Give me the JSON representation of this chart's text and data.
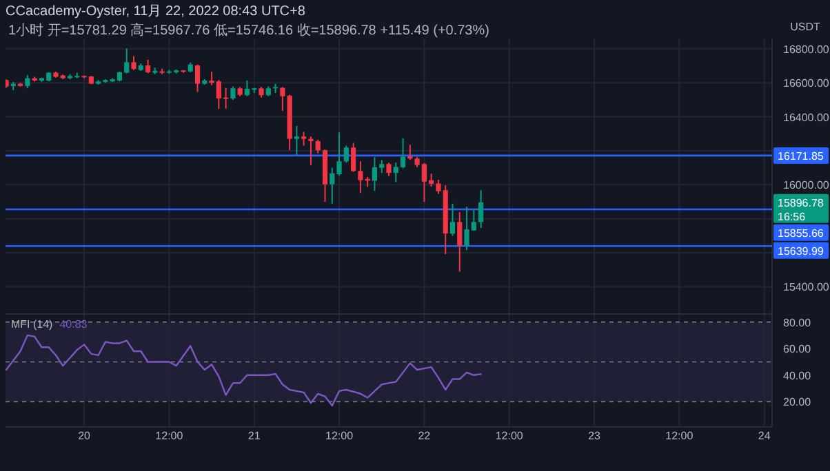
{
  "chart_data": [
    {
      "type": "candlestick",
      "title": "CCacademy-Oyster, 11月 22, 2022 08:43 UTC+8",
      "subtitle": "1小时 开=15781.29 高=15967.76 低=15746.16 收=15896.78 +115.49 (+0.73%)",
      "ylabel": "USDT",
      "x": [
        "2022-11-19T13:00",
        "2022-11-19T14:00",
        "2022-11-19T15:00",
        "2022-11-19T16:00",
        "2022-11-19T17:00",
        "2022-11-19T18:00",
        "2022-11-19T19:00",
        "2022-11-19T20:00",
        "2022-11-19T21:00",
        "2022-11-19T22:00",
        "2022-11-19T23:00",
        "2022-11-20T00:00",
        "2022-11-20T01:00",
        "2022-11-20T02:00",
        "2022-11-20T03:00",
        "2022-11-20T04:00",
        "2022-11-20T05:00",
        "2022-11-20T06:00",
        "2022-11-20T07:00",
        "2022-11-20T08:00",
        "2022-11-20T09:00",
        "2022-11-20T10:00",
        "2022-11-20T11:00",
        "2022-11-20T12:00",
        "2022-11-20T13:00",
        "2022-11-20T14:00",
        "2022-11-20T15:00",
        "2022-11-20T16:00",
        "2022-11-20T17:00",
        "2022-11-20T18:00",
        "2022-11-20T19:00",
        "2022-11-20T20:00",
        "2022-11-20T21:00",
        "2022-11-20T22:00",
        "2022-11-20T23:00",
        "2022-11-21T00:00",
        "2022-11-21T01:00",
        "2022-11-21T02:00",
        "2022-11-21T03:00",
        "2022-11-21T04:00",
        "2022-11-21T05:00",
        "2022-11-21T06:00",
        "2022-11-21T07:00",
        "2022-11-21T08:00",
        "2022-11-21T09:00",
        "2022-11-21T10:00",
        "2022-11-21T11:00",
        "2022-11-21T12:00",
        "2022-11-21T13:00",
        "2022-11-21T14:00",
        "2022-11-21T15:00",
        "2022-11-21T16:00",
        "2022-11-21T17:00",
        "2022-11-21T18:00",
        "2022-11-21T19:00",
        "2022-11-21T20:00",
        "2022-11-21T21:00",
        "2022-11-21T22:00",
        "2022-11-21T23:00",
        "2022-11-22T00:00",
        "2022-11-22T01:00",
        "2022-11-22T02:00",
        "2022-11-22T03:00",
        "2022-11-22T04:00",
        "2022-11-22T05:00",
        "2022-11-22T06:00",
        "2022-11-22T07:00",
        "2022-11-22T08:00"
      ],
      "ohlc": [
        [
          16616,
          16620,
          16570,
          16578
        ],
        [
          16581,
          16605,
          16556,
          16594
        ],
        [
          16594,
          16600,
          16578,
          16581
        ],
        [
          16581,
          16646,
          16567,
          16627
        ],
        [
          16627,
          16635,
          16608,
          16613
        ],
        [
          16613,
          16630,
          16605,
          16627
        ],
        [
          16613,
          16662,
          16608,
          16659
        ],
        [
          16659,
          16665,
          16630,
          16635
        ],
        [
          16643,
          16648,
          16621,
          16627
        ],
        [
          16627,
          16651,
          16621,
          16640
        ],
        [
          16632,
          16659,
          16627,
          16640
        ],
        [
          16640,
          16643,
          16627,
          16632
        ],
        [
          16637,
          16640,
          16592,
          16594
        ],
        [
          16594,
          16616,
          16589,
          16608
        ],
        [
          16605,
          16621,
          16600,
          16616
        ],
        [
          16608,
          16627,
          16605,
          16621
        ],
        [
          16613,
          16665,
          16608,
          16662
        ],
        [
          16659,
          16802,
          16656,
          16721
        ],
        [
          16721,
          16756,
          16675,
          16681
        ],
        [
          16675,
          16713,
          16670,
          16702
        ],
        [
          16702,
          16735,
          16656,
          16662
        ],
        [
          16659,
          16689,
          16651,
          16670
        ],
        [
          16667,
          16683,
          16651,
          16659
        ],
        [
          16659,
          16675,
          16654,
          16667
        ],
        [
          16662,
          16678,
          16654,
          16673
        ],
        [
          16673,
          16675,
          16659,
          16665
        ],
        [
          16667,
          16719,
          16662,
          16708
        ],
        [
          16702,
          16708,
          16546,
          16594
        ],
        [
          16594,
          16621,
          16589,
          16613
        ],
        [
          16613,
          16665,
          16586,
          16600
        ],
        [
          16608,
          16616,
          16446,
          16508
        ],
        [
          16513,
          16570,
          16448,
          16505
        ],
        [
          16508,
          16578,
          16500,
          16567
        ],
        [
          16567,
          16575,
          16521,
          16529
        ],
        [
          16527,
          16613,
          16521,
          16565
        ],
        [
          16562,
          16570,
          16540,
          16567
        ],
        [
          16567,
          16575,
          16513,
          16527
        ],
        [
          16527,
          16578,
          16521,
          16567
        ],
        [
          16570,
          16594,
          16540,
          16575
        ],
        [
          16570,
          16575,
          16435,
          16521
        ],
        [
          16524,
          16530,
          16205,
          16270
        ],
        [
          16270,
          16346,
          16173,
          16284
        ],
        [
          16284,
          16311,
          16230,
          16270
        ],
        [
          16270,
          16284,
          16116,
          16257
        ],
        [
          16257,
          16265,
          16184,
          16203
        ],
        [
          16203,
          16208,
          15900,
          16003
        ],
        [
          16003,
          16100,
          15889,
          16068
        ],
        [
          16062,
          16308,
          16054,
          16138
        ],
        [
          16138,
          16230,
          16130,
          16219
        ],
        [
          16219,
          16246,
          16076,
          16081
        ],
        [
          16081,
          16138,
          15952,
          16027
        ],
        [
          16035,
          16046,
          15987,
          16024
        ],
        [
          16024,
          16162,
          15965,
          16103
        ],
        [
          16100,
          16146,
          16070,
          16122
        ],
        [
          16122,
          16130,
          16051,
          16070
        ],
        [
          16070,
          16130,
          16016,
          16105
        ],
        [
          16103,
          16273,
          16097,
          16165
        ],
        [
          16168,
          16235,
          16146,
          16154
        ],
        [
          16154,
          16165,
          16103,
          16116
        ],
        [
          16122,
          16127,
          15900,
          16019
        ],
        [
          16027,
          16065,
          15989,
          16005
        ],
        [
          16008,
          16030,
          15946,
          15962
        ],
        [
          15968,
          15997,
          15592,
          15713
        ],
        [
          15713,
          15889,
          15700,
          15781
        ],
        [
          15781,
          15840,
          15489,
          15640
        ],
        [
          15640,
          15870,
          15616,
          15738
        ],
        [
          15732,
          15851,
          15730,
          15781.29
        ],
        [
          15781.29,
          15967.76,
          15746.16,
          15896.78
        ]
      ],
      "xlim": [
        "2022-11-19T12:54",
        "2022-11-24T01:06"
      ],
      "xticks": [
        {
          "value": "2022-11-20",
          "label": null
        },
        {
          "value": "2022-11-20T12:00",
          "label": null
        },
        {
          "value": "2022-11-21",
          "label": null
        },
        {
          "value": "2022-11-21T12:00",
          "label": null
        },
        {
          "value": "2022-11-22",
          "label": null
        },
        {
          "value": "2022-11-22T12:00",
          "label": null
        },
        {
          "value": "2022-11-23",
          "label": null
        },
        {
          "value": "2022-11-23T12:00",
          "label": null
        },
        {
          "value": "2022-11-24",
          "label": null
        }
      ],
      "ylim": [
        15240,
        16860
      ],
      "yticks": [
        {
          "value": 15400,
          "label": "15400.00"
        },
        {
          "value": 15600,
          "label": null
        },
        {
          "value": 15800,
          "label": null
        },
        {
          "value": 16000,
          "label": "16000.00"
        },
        {
          "value": 16200,
          "label": null
        },
        {
          "value": 16400,
          "label": "16400.00"
        },
        {
          "value": 16600,
          "label": "16600.00"
        },
        {
          "value": 16800,
          "label": "16800.00"
        }
      ],
      "tick_labels": "y",
      "grid": true,
      "ref_lines": [
        {
          "axis": "y",
          "value": 16171.85,
          "label": "16171.85",
          "color": "#2962ff"
        },
        {
          "axis": "y",
          "value": 15855.66,
          "label": "15855.66",
          "color": "#2962ff"
        },
        {
          "axis": "y",
          "value": 15639.99,
          "label": "15639.99",
          "color": "#2962ff"
        }
      ],
      "annotations": [
        "15896.78",
        "16:56"
      ]
    },
    {
      "type": "line",
      "title": "MFI (14)",
      "color": "#7e57c2",
      "x": [
        "2022-11-19T13:00",
        "2022-11-19T15:00",
        "2022-11-19T16:00",
        "2022-11-19T17:00",
        "2022-11-19T18:00",
        "2022-11-19T19:00",
        "2022-11-19T20:00",
        "2022-11-19T21:00",
        "2022-11-19T23:00",
        "2022-11-20T00:00",
        "2022-11-20T01:00",
        "2022-11-20T02:00",
        "2022-11-20T03:00",
        "2022-11-20T04:00",
        "2022-11-20T05:00",
        "2022-11-20T06:00",
        "2022-11-20T07:00",
        "2022-11-20T08:00",
        "2022-11-20T09:00",
        "2022-11-20T11:00",
        "2022-11-20T12:00",
        "2022-11-20T13:00",
        "2022-11-20T15:00",
        "2022-11-20T16:00",
        "2022-11-20T17:00",
        "2022-11-20T18:00",
        "2022-11-20T19:00",
        "2022-11-20T20:00",
        "2022-11-20T21:00",
        "2022-11-20T22:00",
        "2022-11-20T23:00",
        "2022-11-21T02:00",
        "2022-11-21T03:00",
        "2022-11-21T04:00",
        "2022-11-21T05:00",
        "2022-11-21T07:00",
        "2022-11-21T08:00",
        "2022-11-21T09:00",
        "2022-11-21T10:00",
        "2022-11-21T11:00",
        "2022-11-21T12:00",
        "2022-11-21T13:00",
        "2022-11-21T15:00",
        "2022-11-21T16:00",
        "2022-11-21T18:00",
        "2022-11-21T20:00",
        "2022-11-21T22:00",
        "2022-11-21T23:00",
        "2022-11-22T01:00",
        "2022-11-22T02:00",
        "2022-11-22T03:00",
        "2022-11-22T04:00",
        "2022-11-22T05:00",
        "2022-11-22T06:00",
        "2022-11-22T07:00",
        "2022-11-22T08:00"
      ],
      "values": [
        44,
        58,
        70,
        69,
        61,
        61,
        55,
        47,
        59,
        63,
        56,
        55,
        65,
        64,
        64,
        66,
        58,
        58,
        50,
        50,
        50,
        47,
        62,
        50,
        44,
        48,
        39,
        25,
        34,
        34,
        40,
        40,
        41,
        33,
        29,
        27,
        19,
        26,
        24,
        17,
        28,
        29,
        26,
        23,
        33,
        35,
        49,
        44,
        46,
        38,
        29,
        37,
        37,
        42,
        40,
        40.83
      ],
      "xlim": [
        "2022-11-19T12:54",
        "2022-11-24T01:06"
      ],
      "xticks": [
        {
          "value": "2022-11-20",
          "label": "20"
        },
        {
          "value": "2022-11-20T12:00",
          "label": "12:00"
        },
        {
          "value": "2022-11-21",
          "label": "21"
        },
        {
          "value": "2022-11-21T12:00",
          "label": "12:00"
        },
        {
          "value": "2022-11-22",
          "label": "22"
        },
        {
          "value": "2022-11-22T12:00",
          "label": "12:00"
        },
        {
          "value": "2022-11-23",
          "label": "23"
        },
        {
          "value": "2022-11-23T12:00",
          "label": "12:00"
        },
        {
          "value": "2022-11-24",
          "label": "24"
        }
      ],
      "ylim": [
        1,
        86
      ],
      "yticks": [
        {
          "value": 20,
          "label": "20.00"
        },
        {
          "value": 40,
          "label": "40.00"
        },
        {
          "value": 60,
          "label": "60.00"
        },
        {
          "value": 80,
          "label": "80.00"
        }
      ],
      "grid": "x",
      "bands": [
        {
          "axis": "y",
          "from": 20,
          "to": 80,
          "color": "#7e57c2"
        }
      ],
      "ref_lines": [
        {
          "axis": "y",
          "value": 80,
          "color": "#787b86",
          "line_style": "dashed"
        },
        {
          "axis": "y",
          "value": 50,
          "color": "#787b86",
          "line_style": "dashed"
        },
        {
          "axis": "y",
          "value": 20,
          "color": "#787b86",
          "line_style": "dashed"
        }
      ],
      "annotations": [
        "40.83"
      ]
    }
  ]
}
